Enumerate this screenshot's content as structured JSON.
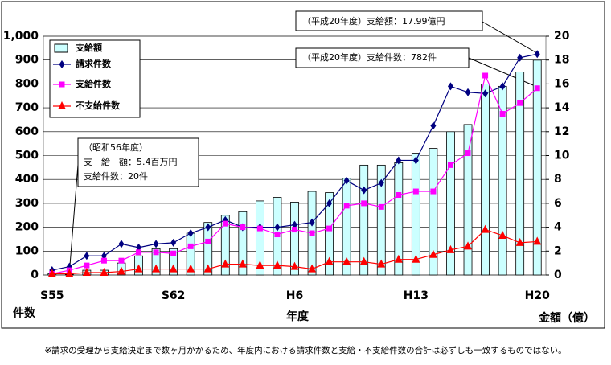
{
  "chart_data": {
    "type": "bar_line",
    "categories": [
      "S55",
      null,
      null,
      null,
      null,
      null,
      null,
      "S62",
      null,
      null,
      null,
      null,
      null,
      null,
      "H6",
      null,
      null,
      null,
      null,
      null,
      null,
      "H13",
      null,
      null,
      null,
      null,
      null,
      null,
      "H20"
    ],
    "series": [
      {
        "name": "支給額",
        "type": "bar",
        "axis": "y2",
        "color": "#ccffff",
        "values": [
          0.1,
          0.054,
          0.4,
          0.4,
          1.0,
          1.6,
          2.2,
          2.2,
          3.5,
          4.4,
          5.0,
          5.3,
          6.2,
          6.5,
          6.1,
          7.0,
          6.9,
          8.1,
          9.2,
          9.2,
          9.4,
          10.2,
          10.6,
          12.0,
          12.6,
          16.0,
          15.8,
          17.0,
          17.99
        ]
      },
      {
        "name": "請求件数",
        "type": "line",
        "marker": "diamond",
        "color": "#000080",
        "values": [
          20,
          35,
          80,
          80,
          130,
          115,
          130,
          135,
          175,
          200,
          230,
          200,
          200,
          200,
          210,
          220,
          300,
          395,
          355,
          385,
          480,
          480,
          625,
          790,
          765,
          760,
          790,
          910,
          925
        ]
      },
      {
        "name": "支給件数",
        "type": "line",
        "marker": "square",
        "color": "#ff00ff",
        "values": [
          5,
          20,
          40,
          60,
          60,
          95,
          95,
          90,
          120,
          140,
          215,
          200,
          195,
          170,
          190,
          175,
          195,
          290,
          300,
          285,
          335,
          350,
          350,
          460,
          510,
          835,
          675,
          720,
          782
        ]
      },
      {
        "name": "不支給件数",
        "type": "line",
        "marker": "triangle",
        "color": "#ff0000",
        "values": [
          5,
          5,
          10,
          10,
          15,
          25,
          25,
          25,
          25,
          25,
          45,
          45,
          40,
          40,
          35,
          25,
          55,
          55,
          55,
          45,
          65,
          65,
          85,
          105,
          120,
          190,
          165,
          135,
          140
        ]
      }
    ],
    "ylim": [
      0,
      1000
    ],
    "yticks": [
      0,
      100,
      200,
      300,
      400,
      500,
      600,
      700,
      800,
      900,
      {
        "value": 1000,
        "label": "1,000"
      }
    ],
    "y2lim": [
      0,
      20
    ],
    "y2ticks": [
      0,
      2,
      4,
      6,
      8,
      10,
      12,
      14,
      16,
      18,
      20
    ],
    "ylabel": "件数",
    "xlabel": "年度",
    "y2label": "金額（億）",
    "annotations": [
      {
        "lines": [
          "（平成20年度）支給額：17.99億円"
        ]
      },
      {
        "lines": [
          "（平成20年度）支給件数：782件"
        ]
      },
      {
        "lines": [
          "（昭和56年度）",
          "支　給　額：5.4百万円",
          "支給件数：20件"
        ]
      }
    ],
    "footnote": "※請求の受理から支給決定まで数ヶ月かかるため、年度内における請求件数と支給・不支給件数の合計は必ずしも一致するものではない。"
  }
}
